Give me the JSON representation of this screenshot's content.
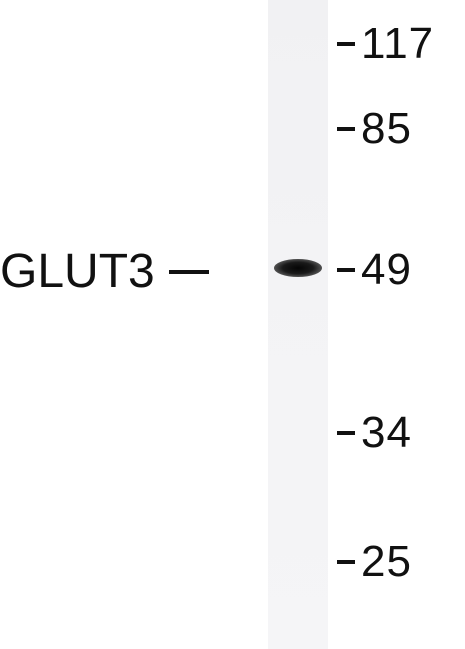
{
  "blot": {
    "protein_label": "GLUT3",
    "markers": [
      {
        "label": "117",
        "kda": 117
      },
      {
        "label": "85",
        "kda": 85
      },
      {
        "label": "49",
        "kda": 49
      },
      {
        "label": "34",
        "kda": 34
      },
      {
        "label": "25",
        "kda": 25
      }
    ],
    "band_kda": 49,
    "colors": {
      "lane": "#f3f3f5",
      "band": "#111111",
      "text": "#111111"
    }
  }
}
